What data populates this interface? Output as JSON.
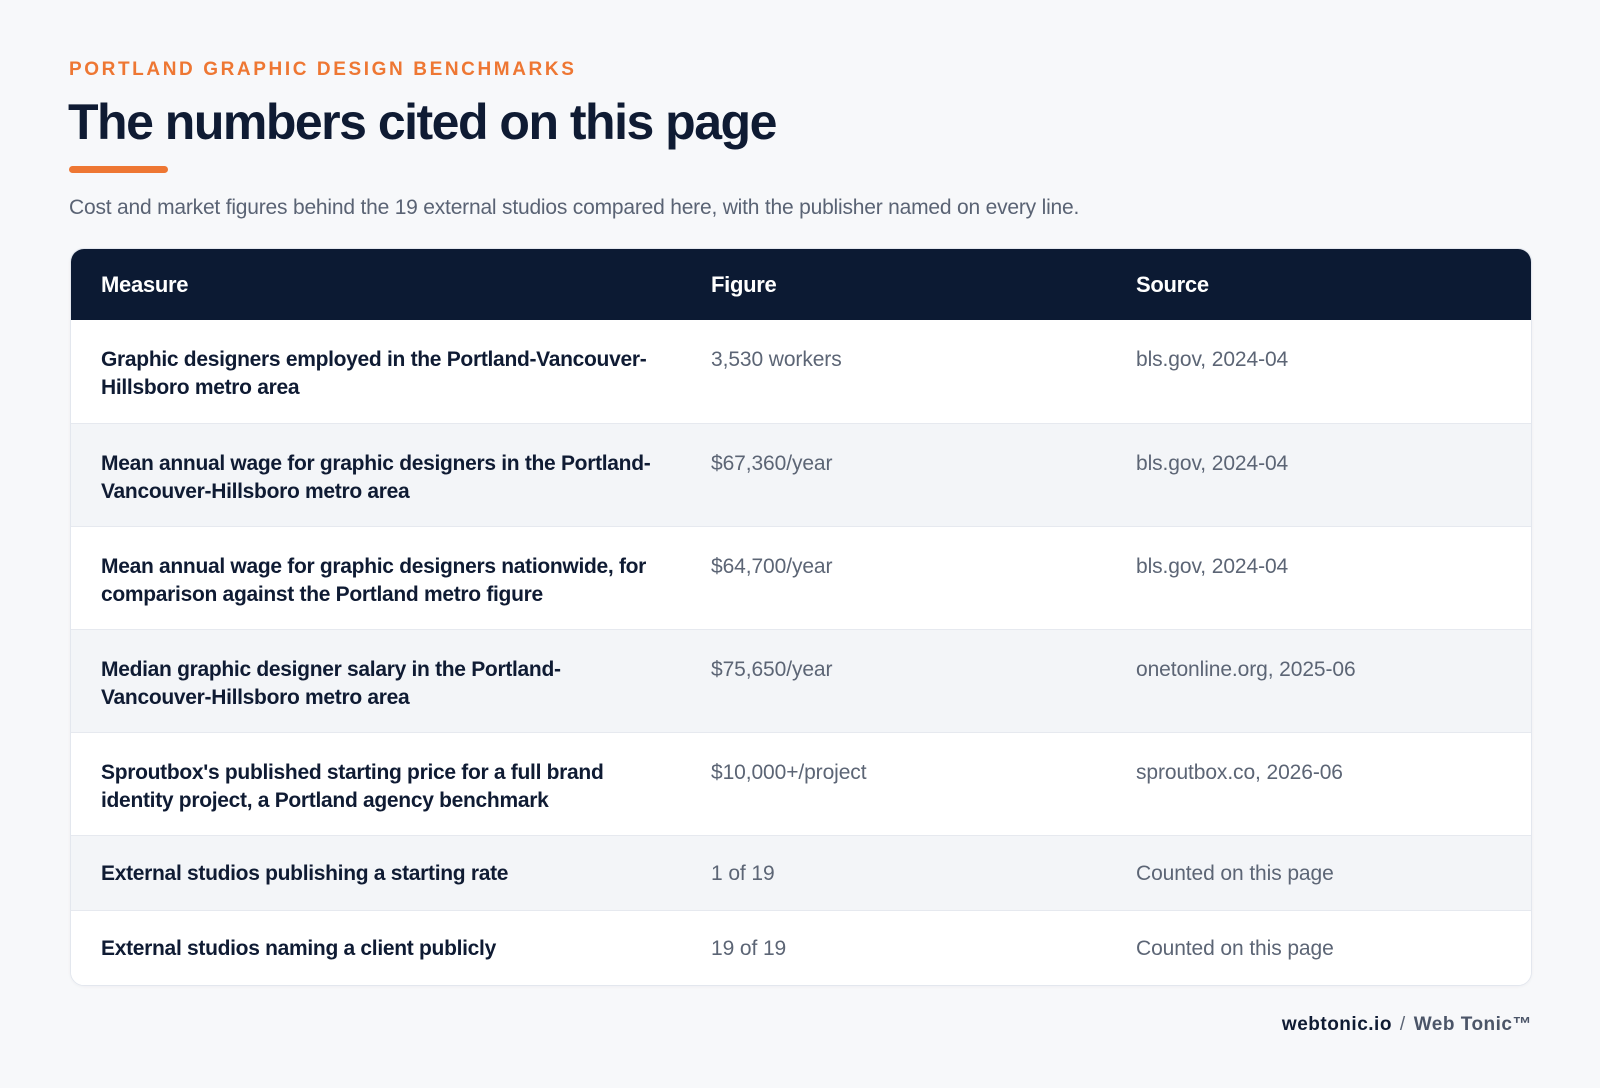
{
  "header": {
    "eyebrow": "PORTLAND GRAPHIC DESIGN BENCHMARKS",
    "title": "The numbers cited on this page",
    "subtitle": "Cost and market figures behind the 19 external studios compared here, with the publisher named on every line.",
    "accent_color": "#ee7733"
  },
  "table": {
    "header_color": "#0c1a33",
    "columns": [
      "Measure",
      "Figure",
      "Source"
    ],
    "rows": [
      {
        "measure": "Graphic designers employed in the Portland-Vancouver-Hillsboro metro area",
        "figure": "3,530 workers",
        "source": "bls.gov, 2024-04"
      },
      {
        "measure": "Mean annual wage for graphic designers in the Portland-Vancouver-Hillsboro metro area",
        "figure": "$67,360/year",
        "source": "bls.gov, 2024-04"
      },
      {
        "measure": "Mean annual wage for graphic designers nationwide, for comparison against the Portland metro figure",
        "figure": "$64,700/year",
        "source": "bls.gov, 2024-04"
      },
      {
        "measure": "Median graphic designer salary in the Portland-Vancouver-Hillsboro metro area",
        "figure": "$75,650/year",
        "source": "onetonline.org, 2025-06"
      },
      {
        "measure": "Sproutbox's published starting price for a full brand identity project, a Portland agency benchmark",
        "figure": "$10,000+/project",
        "source": "sproutbox.co, 2026-06"
      },
      {
        "measure": "External studios publishing a starting rate",
        "figure": "1 of 19",
        "source": "Counted on this page"
      },
      {
        "measure": "External studios naming a client publicly",
        "figure": "19 of 19",
        "source": "Counted on this page"
      }
    ]
  },
  "footer": {
    "domain": "webtonic.io",
    "separator": "/",
    "brand": "Web Tonic™"
  }
}
